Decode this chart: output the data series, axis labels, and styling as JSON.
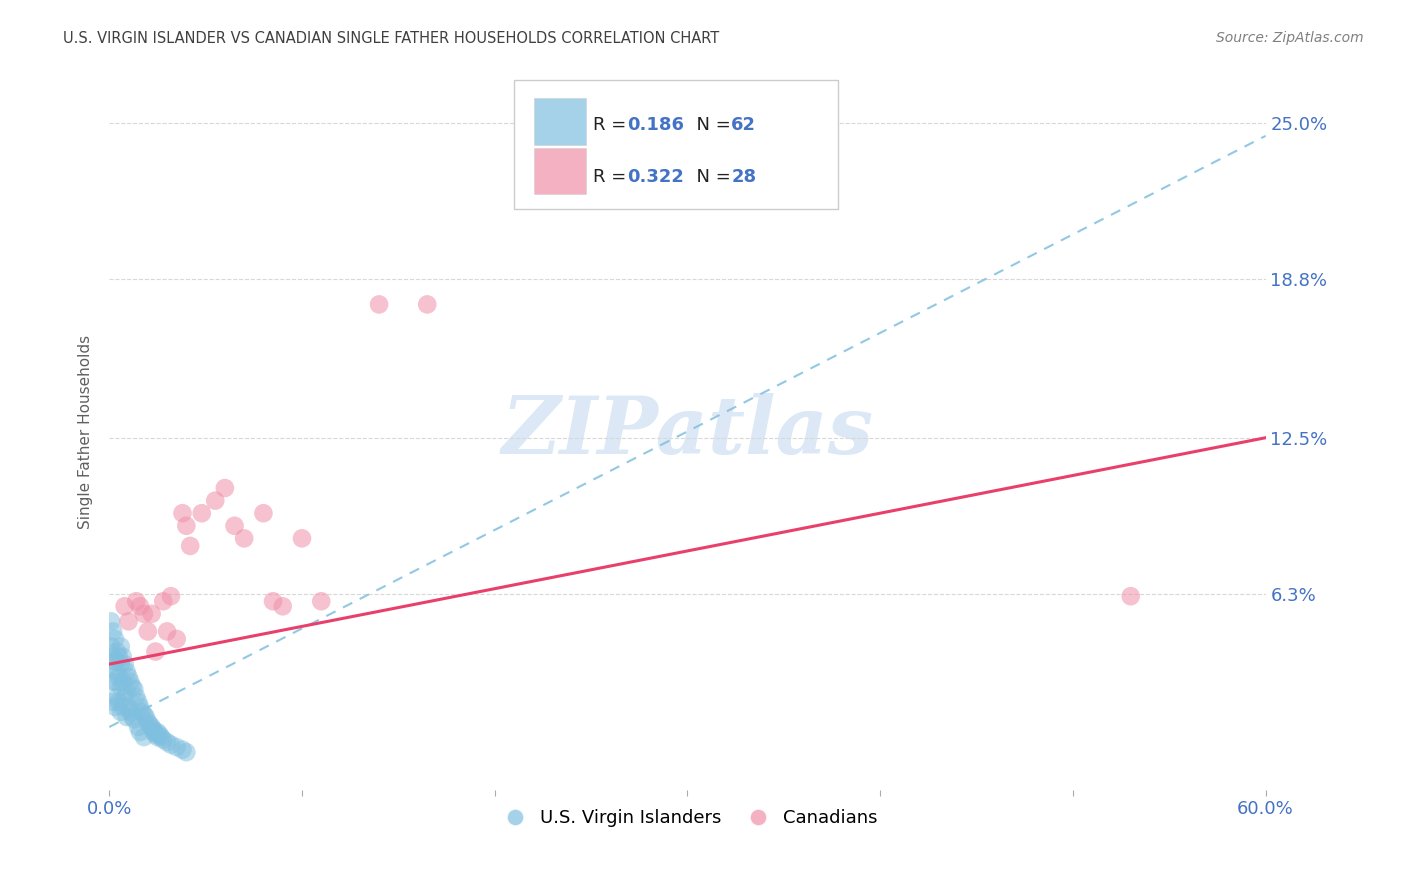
{
  "title": "U.S. VIRGIN ISLANDER VS CANADIAN SINGLE FATHER HOUSEHOLDS CORRELATION CHART",
  "source": "Source: ZipAtlas.com",
  "ylabel": "Single Father Households",
  "ytick_labels": [
    "",
    "6.3%",
    "12.5%",
    "18.8%",
    "25.0%"
  ],
  "ytick_values": [
    0.0,
    0.063,
    0.125,
    0.188,
    0.25
  ],
  "xlim": [
    0.0,
    0.6
  ],
  "ylim": [
    -0.015,
    0.27
  ],
  "blue_scatter_x": [
    0.001,
    0.001,
    0.001,
    0.002,
    0.002,
    0.002,
    0.002,
    0.003,
    0.003,
    0.003,
    0.003,
    0.004,
    0.004,
    0.004,
    0.005,
    0.005,
    0.005,
    0.006,
    0.006,
    0.006,
    0.006,
    0.007,
    0.007,
    0.007,
    0.008,
    0.008,
    0.009,
    0.009,
    0.009,
    0.01,
    0.01,
    0.011,
    0.011,
    0.012,
    0.012,
    0.013,
    0.013,
    0.014,
    0.015,
    0.015,
    0.016,
    0.016,
    0.017,
    0.018,
    0.018,
    0.019,
    0.02,
    0.021,
    0.022,
    0.023,
    0.023,
    0.024,
    0.025,
    0.025,
    0.026,
    0.027,
    0.028,
    0.03,
    0.032,
    0.035,
    0.038,
    0.04
  ],
  "blue_scatter_y": [
    0.052,
    0.042,
    0.035,
    0.048,
    0.038,
    0.028,
    0.02,
    0.045,
    0.036,
    0.028,
    0.018,
    0.04,
    0.032,
    0.022,
    0.038,
    0.03,
    0.02,
    0.042,
    0.035,
    0.026,
    0.016,
    0.038,
    0.028,
    0.018,
    0.035,
    0.022,
    0.032,
    0.024,
    0.014,
    0.03,
    0.018,
    0.028,
    0.016,
    0.026,
    0.014,
    0.025,
    0.013,
    0.022,
    0.02,
    0.01,
    0.018,
    0.008,
    0.016,
    0.015,
    0.006,
    0.014,
    0.012,
    0.011,
    0.01,
    0.009,
    0.008,
    0.007,
    0.008,
    0.006,
    0.007,
    0.006,
    0.005,
    0.004,
    0.003,
    0.002,
    0.001,
    0.0
  ],
  "pink_scatter_x": [
    0.008,
    0.01,
    0.014,
    0.016,
    0.018,
    0.02,
    0.022,
    0.024,
    0.028,
    0.03,
    0.032,
    0.035,
    0.038,
    0.04,
    0.042,
    0.048,
    0.055,
    0.06,
    0.065,
    0.07,
    0.08,
    0.085,
    0.09,
    0.1,
    0.11,
    0.14,
    0.165,
    0.53
  ],
  "pink_scatter_y": [
    0.058,
    0.052,
    0.06,
    0.058,
    0.055,
    0.048,
    0.055,
    0.04,
    0.06,
    0.048,
    0.062,
    0.045,
    0.095,
    0.09,
    0.082,
    0.095,
    0.1,
    0.105,
    0.09,
    0.085,
    0.095,
    0.06,
    0.058,
    0.085,
    0.06,
    0.178,
    0.178,
    0.062
  ],
  "blue_line_x": [
    0.0,
    0.6
  ],
  "blue_line_y": [
    0.01,
    0.245
  ],
  "pink_line_x": [
    0.0,
    0.6
  ],
  "pink_line_y": [
    0.035,
    0.125
  ],
  "blue_color": "#7fbfdf",
  "pink_color": "#f090a8",
  "blue_line_color": "#7fbfdf",
  "pink_line_color": "#e8406a",
  "title_color": "#404040",
  "axis_tick_color": "#4472c4",
  "source_color": "#808080",
  "watermark_text": "ZIPatlas",
  "watermark_color": "#dce8f5",
  "background_color": "#ffffff",
  "grid_color": "#d8d8d8",
  "legend_box_color": "#cccccc",
  "legend_R_color": "#000000",
  "legend_N_color": "#4472c4",
  "legend_val_color": "#4472c4"
}
